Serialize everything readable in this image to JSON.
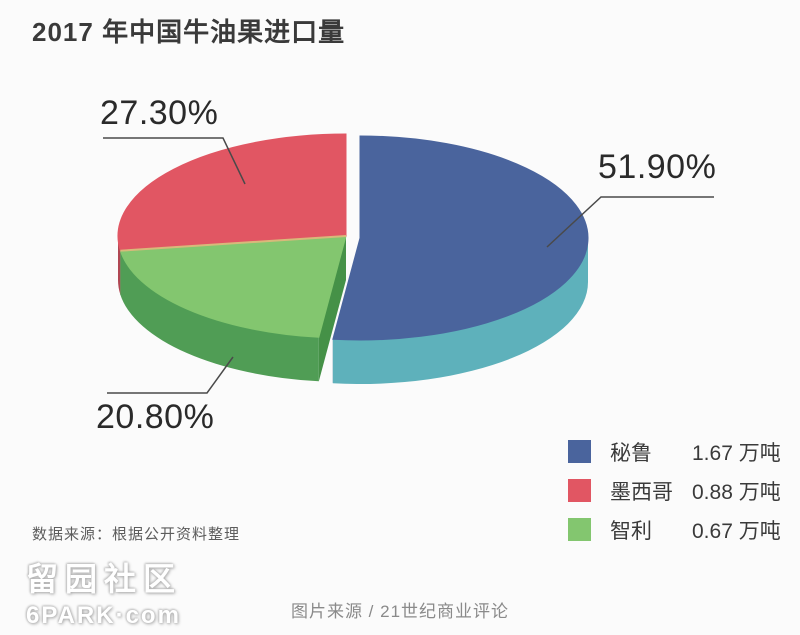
{
  "page": {
    "title": "2017 年中国牛油果进口量",
    "source_note": "数据来源：根据公开资料整理",
    "caption": "图片来源 / 21世纪商业评论",
    "watermark": {
      "line1": "留园社区",
      "line2": "6PARK·com"
    }
  },
  "chart_data": {
    "type": "pie",
    "style": "3d-exploded",
    "title": "2017 年中国牛油果进口量",
    "unit": "万吨",
    "legend_position": "bottom-right",
    "start_angle_deg": 0,
    "clockwise_order": [
      "秘鲁",
      "智利",
      "墨西哥"
    ],
    "slices": [
      {
        "label": "秘鲁",
        "percent": 51.9,
        "percent_label": "51.90%",
        "value": 1.67,
        "value_label": "1.67 万吨",
        "color": "#4a649d",
        "side_color": "#5eb1bb",
        "cut_color": "#3d5685",
        "exploded": true
      },
      {
        "label": "墨西哥",
        "percent": 27.3,
        "percent_label": "27.30%",
        "value": 0.88,
        "value_label": "0.88 万吨",
        "color": "#e15663",
        "side_color": "#b04652",
        "cut_color": "#c34a56",
        "exploded": false
      },
      {
        "label": "智利",
        "percent": 20.8,
        "percent_label": "20.80%",
        "value": 0.67,
        "value_label": "0.67 万吨",
        "color": "#83c66f",
        "side_color": "#509d55",
        "cut_color": "#459147",
        "exploded": false
      }
    ],
    "edge_highlight_color": "#d8b97a",
    "background_color": "#fbfbfb"
  }
}
